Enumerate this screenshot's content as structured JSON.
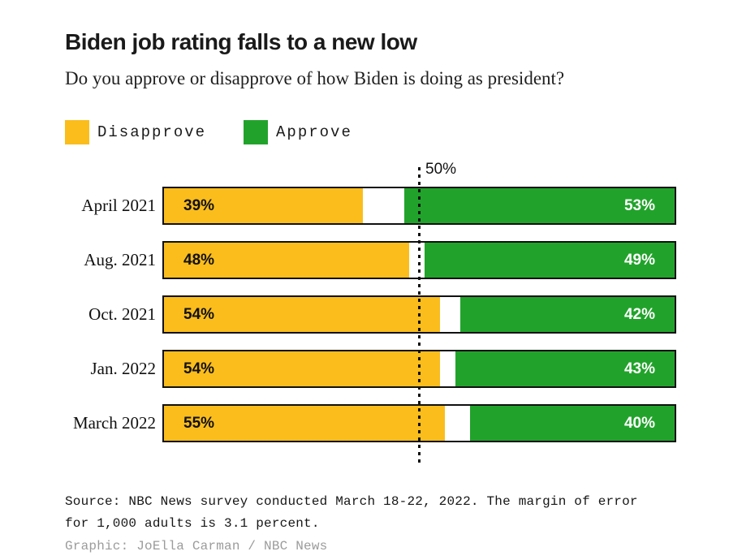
{
  "header": {
    "title": "Biden job rating falls to a new low",
    "subtitle": "Do you approve or disapprove of how Biden is doing as president?"
  },
  "legend": [
    {
      "label": "Disapprove",
      "color": "#FABD1C"
    },
    {
      "label": "Approve",
      "color": "#21A32B"
    }
  ],
  "chart_data": {
    "type": "bar",
    "orientation": "horizontal",
    "stacked": true,
    "categories": [
      "April 2021",
      "Aug. 2021",
      "Oct. 2021",
      "Jan. 2022",
      "March 2022"
    ],
    "series": [
      {
        "name": "Disapprove",
        "color": "#FABD1C",
        "values": [
          39,
          48,
          54,
          54,
          55
        ]
      },
      {
        "name": "Approve",
        "color": "#21A32B",
        "values": [
          53,
          49,
          42,
          43,
          40
        ]
      }
    ],
    "value_suffix": "%",
    "xlim": [
      0,
      100
    ],
    "reference_line": {
      "value": 50,
      "label": "50%"
    },
    "bar_border_color": "#111111",
    "grid": false,
    "legend_position": "top-left"
  },
  "footer": {
    "source_line1": "Source: NBC News survey conducted March 18-22, 2022. The margin of error",
    "source_line2": "for 1,000 adults is 3.1 percent.",
    "credit": "Graphic: JoElla Carman / NBC News"
  }
}
